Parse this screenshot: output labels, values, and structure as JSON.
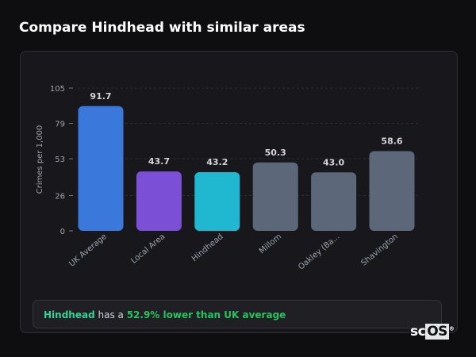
{
  "page_title": "Compare Hindhead with similar areas",
  "chart_data": {
    "type": "bar",
    "title": "",
    "xlabel": "",
    "ylabel": "Crimes per 1,000",
    "ylim": [
      0,
      105
    ],
    "yticks": [
      0,
      26,
      53,
      79,
      105
    ],
    "grid": true,
    "categories": [
      "UK Average",
      "Local Area",
      "Hindhead",
      "Millom",
      "Oakley (Ba...",
      "Shavington"
    ],
    "values": [
      91.7,
      43.7,
      43.2,
      50.3,
      43.0,
      58.6
    ],
    "value_labels": [
      "91.7",
      "43.7",
      "43.2",
      "50.3",
      "43.0",
      "58.6"
    ],
    "colors": [
      "#3b78dc",
      "#7b4fd6",
      "#1fb8d0",
      "#5c677a",
      "#5c677a",
      "#5c677a"
    ]
  },
  "summary": {
    "area": "Hindhead",
    "text": " has a ",
    "comparison": "52.9% lower than UK average"
  },
  "logo": {
    "sc": "sc",
    "os": "OS",
    "mark": "®"
  }
}
